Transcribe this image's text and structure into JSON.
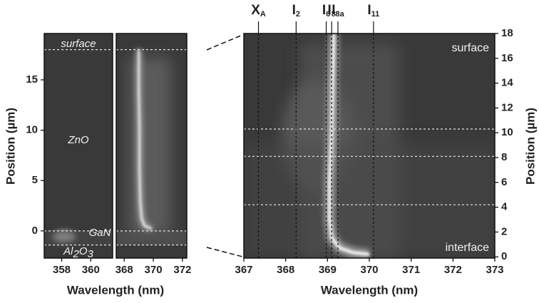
{
  "chart_data": [
    {
      "type": "heatmap",
      "xlabel": "Wavelength (nm)",
      "ylabel": "Position (µm)",
      "xlim": [
        356.8,
        361.5
      ],
      "ylim": [
        -2.7,
        19.6
      ],
      "xticks": [
        358,
        360
      ],
      "yticks": [
        0,
        5,
        10,
        15
      ],
      "hlines": [
        18,
        0,
        -1.4
      ],
      "annotations": [
        {
          "parts": [
            "surface"
          ]
        },
        {
          "parts": [
            "ZnO"
          ]
        },
        {
          "parts": [
            "GaN"
          ]
        },
        {
          "parts": [
            "Al",
            "2",
            "O",
            "3"
          ]
        }
      ]
    },
    {
      "type": "heatmap",
      "xlim": [
        367.45,
        372.3
      ],
      "ylim": [
        -2.7,
        19.6
      ],
      "xticks": [
        368,
        370,
        372
      ],
      "hlines": [
        18,
        0,
        -1.4
      ],
      "trace": {
        "x": [
          369.0,
          369.0,
          369.05,
          369.05,
          369.1,
          369.2,
          369.4,
          369.9
        ],
        "y": [
          18,
          14,
          10,
          6,
          3,
          1.2,
          0.5,
          0.2
        ]
      }
    },
    {
      "type": "heatmap",
      "xlabel": "Wavelength (nm)",
      "ylabel": "Position (µm)",
      "xlim": [
        367,
        373
      ],
      "ylim": [
        -0.1,
        18
      ],
      "xticks": [
        367,
        368,
        369,
        370,
        371,
        372,
        373
      ],
      "yticks": [
        0,
        2,
        4,
        6,
        8,
        10,
        12,
        14,
        16,
        18
      ],
      "hlines": [
        10.3,
        8.1,
        4.2
      ],
      "trace": {
        "x": [
          369.15,
          369.12,
          369.1,
          369.05,
          369.05,
          369.1,
          369.3,
          369.6,
          370.0
        ],
        "y": [
          18,
          14,
          10,
          6,
          3,
          1.5,
          0.7,
          0.35,
          0.2
        ]
      },
      "peaks": [
        {
          "label": "X",
          "sub": "A",
          "x": 367.35
        },
        {
          "label": "I",
          "sub": "2",
          "x": 368.25
        },
        {
          "label": "I",
          "sub": "6",
          "x": 368.97
        },
        {
          "label": "I",
          "sub": "8",
          "x": 369.1
        },
        {
          "label": "I",
          "sub": "8a",
          "x": 369.25
        },
        {
          "label": "I",
          "sub": "11",
          "x": 370.1
        }
      ],
      "annotations": [
        {
          "parts": [
            "surface"
          ]
        },
        {
          "parts": [
            "interface"
          ]
        }
      ]
    }
  ]
}
